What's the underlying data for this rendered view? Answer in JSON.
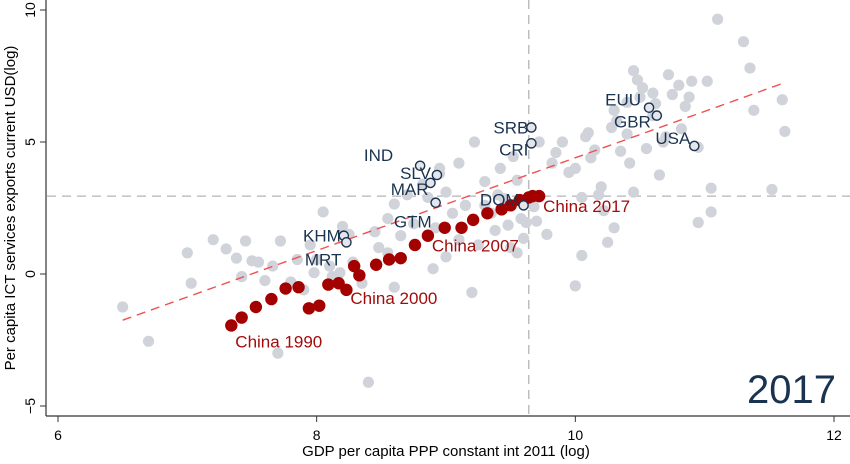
{
  "chart_data": {
    "type": "scatter",
    "title": "",
    "year_annotation": "2017",
    "xlabel": "GDP per capita PPP constant int 2011 (log)",
    "ylabel": "Per capita ICT services exports current USD(log)",
    "xlim": [
      5.95,
      12.05
    ],
    "ylim": [
      -5.2,
      10.4
    ],
    "xticks": [
      6,
      8,
      10,
      12
    ],
    "yticks": [
      -5,
      0,
      5,
      10
    ],
    "reference_lines": {
      "x": 9.64,
      "y": 2.95
    },
    "fit_line": {
      "x": [
        6.5,
        11.62
      ],
      "y": [
        -1.75,
        7.25
      ]
    },
    "colors": {
      "background_points": "#d0d3da",
      "china": "#a30000",
      "highlight": "#1a3350",
      "fit_line": "#f05050",
      "reference_line": "#b4b4b4"
    },
    "background_points": [
      [
        6.5,
        -1.25
      ],
      [
        6.7,
        -2.55
      ],
      [
        7.0,
        0.8
      ],
      [
        7.03,
        -0.35
      ],
      [
        7.2,
        1.3
      ],
      [
        7.3,
        0.95
      ],
      [
        7.38,
        0.6
      ],
      [
        7.42,
        -0.1
      ],
      [
        7.5,
        0.5
      ],
      [
        7.45,
        1.25
      ],
      [
        7.55,
        0.45
      ],
      [
        7.6,
        -0.25
      ],
      [
        7.7,
        -3.0
      ],
      [
        7.72,
        1.25
      ],
      [
        7.85,
        0.55
      ],
      [
        7.9,
        -0.6
      ],
      [
        7.95,
        1.1
      ],
      [
        8.0,
        0.55
      ],
      [
        8.05,
        2.35
      ],
      [
        8.12,
        -0.1
      ],
      [
        8.18,
        0.05
      ],
      [
        8.2,
        1.8
      ],
      [
        8.28,
        0.45
      ],
      [
        8.35,
        -0.35
      ],
      [
        8.4,
        -4.1
      ],
      [
        8.48,
        1.0
      ],
      [
        8.55,
        2.1
      ],
      [
        8.6,
        -0.5
      ],
      [
        8.65,
        1.45
      ],
      [
        8.75,
        1.9
      ],
      [
        8.82,
        3.4
      ],
      [
        8.86,
        2.9
      ],
      [
        8.92,
        1.75
      ],
      [
        8.95,
        3.8
      ],
      [
        9.0,
        3.1
      ],
      [
        9.05,
        2.3
      ],
      [
        9.1,
        1.3
      ],
      [
        9.15,
        2.6
      ],
      [
        9.2,
        -0.7
      ],
      [
        9.22,
        5.0
      ],
      [
        9.3,
        3.5
      ],
      [
        9.35,
        2.3
      ],
      [
        9.38,
        1.65
      ],
      [
        9.42,
        4.0
      ],
      [
        9.45,
        2.85
      ],
      [
        9.5,
        1.0
      ],
      [
        9.52,
        4.45
      ],
      [
        9.55,
        3.55
      ],
      [
        9.58,
        2.1
      ],
      [
        9.6,
        1.35
      ],
      [
        9.62,
        1.95
      ],
      [
        9.7,
        2.0
      ],
      [
        9.72,
        5.0
      ],
      [
        9.78,
        1.5
      ],
      [
        9.82,
        4.2
      ],
      [
        9.9,
        5.0
      ],
      [
        9.95,
        3.85
      ],
      [
        10.0,
        -0.45
      ],
      [
        10.05,
        2.9
      ],
      [
        10.1,
        5.35
      ],
      [
        10.15,
        4.7
      ],
      [
        10.2,
        3.3
      ],
      [
        10.22,
        2.4
      ],
      [
        10.28,
        5.55
      ],
      [
        10.3,
        6.2
      ],
      [
        10.32,
        5.8
      ],
      [
        10.35,
        4.65
      ],
      [
        10.4,
        5.3
      ],
      [
        10.42,
        4.2
      ],
      [
        10.45,
        3.1
      ],
      [
        10.5,
        6.7
      ],
      [
        10.52,
        7.05
      ],
      [
        10.55,
        4.75
      ],
      [
        10.6,
        6.0
      ],
      [
        10.62,
        6.45
      ],
      [
        10.65,
        3.75
      ],
      [
        10.68,
        5.0
      ],
      [
        10.72,
        7.55
      ],
      [
        10.75,
        6.8
      ],
      [
        10.8,
        7.15
      ],
      [
        10.82,
        5.5
      ],
      [
        10.85,
        6.35
      ],
      [
        10.88,
        6.7
      ],
      [
        10.9,
        7.3
      ],
      [
        10.95,
        4.8
      ],
      [
        11.02,
        7.3
      ],
      [
        11.1,
        9.65
      ],
      [
        11.3,
        8.8
      ],
      [
        11.35,
        7.8
      ],
      [
        11.38,
        6.2
      ],
      [
        11.52,
        3.2
      ],
      [
        11.6,
        6.6
      ],
      [
        11.62,
        5.4
      ],
      [
        10.12,
        4.4
      ],
      [
        10.18,
        3.0
      ],
      [
        10.45,
        7.7
      ],
      [
        10.48,
        7.35
      ],
      [
        10.7,
        5.2
      ],
      [
        9.68,
        2.55
      ],
      [
        9.3,
        2.6
      ],
      [
        9.25,
        1.1
      ],
      [
        9.0,
        0.65
      ],
      [
        8.9,
        0.2
      ],
      [
        8.55,
        0.8
      ],
      [
        8.45,
        1.6
      ],
      [
        8.25,
        1.5
      ],
      [
        8.1,
        0.3
      ],
      [
        7.98,
        0.05
      ],
      [
        7.8,
        -0.3
      ],
      [
        7.66,
        0.3
      ],
      [
        8.6,
        2.65
      ],
      [
        8.7,
        3.0
      ],
      [
        8.95,
        4.0
      ],
      [
        9.1,
        4.2
      ],
      [
        9.4,
        3.0
      ],
      [
        9.48,
        1.85
      ],
      [
        9.55,
        0.8
      ],
      [
        10.05,
        0.7
      ],
      [
        10.25,
        1.2
      ],
      [
        10.3,
        1.75
      ],
      [
        11.05,
        2.35
      ],
      [
        10.95,
        1.95
      ],
      [
        11.05,
        3.25
      ],
      [
        9.85,
        4.6
      ],
      [
        10.0,
        4.0
      ],
      [
        10.08,
        5.2
      ],
      [
        10.6,
        6.85
      ],
      [
        10.4,
        6.5
      ]
    ],
    "china_series": {
      "name": "China",
      "years": [
        1990,
        1991,
        1992,
        1993,
        1994,
        1995,
        1996,
        1997,
        1998,
        1999,
        2000,
        2001,
        2002,
        2003,
        2004,
        2005,
        2006,
        2007,
        2008,
        2009,
        2010,
        2011,
        2012,
        2013,
        2014,
        2015,
        2016,
        2017
      ],
      "x": [
        7.34,
        7.42,
        7.53,
        7.65,
        7.76,
        7.86,
        7.94,
        8.02,
        8.09,
        8.17,
        8.23,
        8.29,
        8.33,
        8.46,
        8.56,
        8.65,
        8.76,
        8.86,
        8.99,
        9.12,
        9.21,
        9.32,
        9.43,
        9.5,
        9.57,
        9.64,
        9.67,
        9.72
      ],
      "y": [
        -1.95,
        -1.65,
        -1.25,
        -0.95,
        -0.55,
        -0.5,
        -1.3,
        -1.2,
        -0.4,
        -0.35,
        -0.6,
        0.3,
        -0.05,
        0.35,
        0.55,
        0.6,
        1.1,
        1.45,
        1.75,
        1.75,
        2.05,
        2.3,
        2.45,
        2.6,
        2.8,
        2.9,
        2.95,
        2.95
      ],
      "labels": [
        {
          "text": "China 1990",
          "year": 1990
        },
        {
          "text": "China 2000",
          "year": 2000
        },
        {
          "text": "China 2007",
          "year": 2007
        },
        {
          "text": "China 2017",
          "year": 2017
        }
      ]
    },
    "highlighted_countries": [
      {
        "code": "IND",
        "x": 8.8,
        "y": 4.1
      },
      {
        "code": "SLV",
        "x": 8.93,
        "y": 3.75
      },
      {
        "code": "MAR",
        "x": 8.88,
        "y": 3.45
      },
      {
        "code": "GTM",
        "x": 8.92,
        "y": 2.7
      },
      {
        "code": "KHM",
        "x": 8.21,
        "y": 1.45
      },
      {
        "code": "MRT",
        "x": 8.23,
        "y": 1.2
      },
      {
        "code": "DOM",
        "x": 9.6,
        "y": 2.6
      },
      {
        "code": "SRB",
        "x": 9.66,
        "y": 5.55
      },
      {
        "code": "CRI",
        "x": 9.66,
        "y": 4.95
      },
      {
        "code": "EUU",
        "x": 10.57,
        "y": 6.3
      },
      {
        "code": "GBR",
        "x": 10.63,
        "y": 6.0
      },
      {
        "code": "USA",
        "x": 10.92,
        "y": 4.85
      }
    ]
  }
}
